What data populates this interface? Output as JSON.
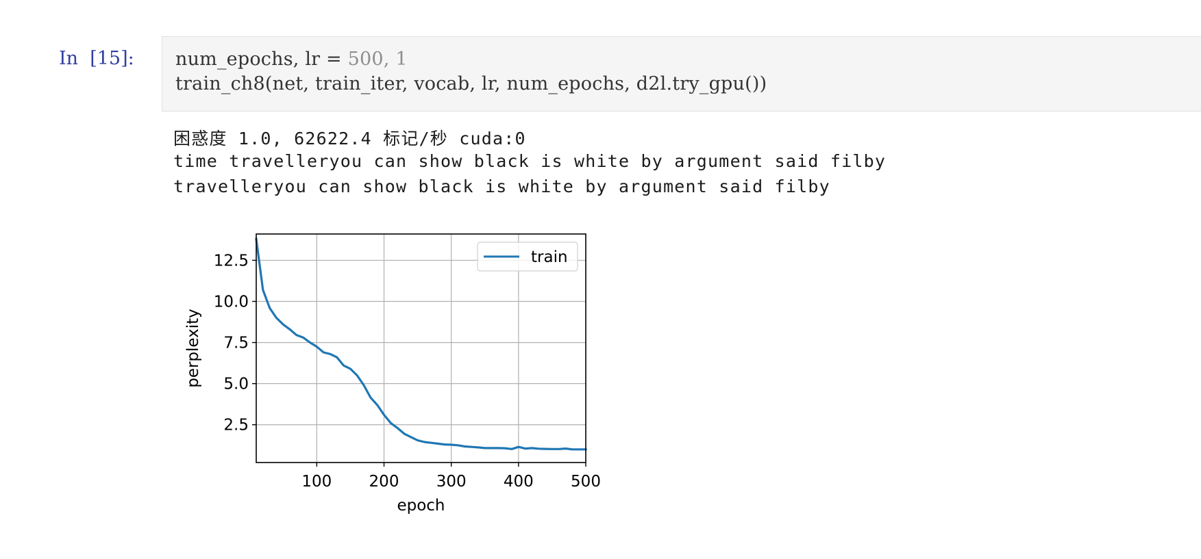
{
  "cell": {
    "prompt": "In  [15]:",
    "code_lines": [
      {
        "pre": "num_epochs, lr = ",
        "num": "500, 1"
      },
      {
        "pre": "train_ch8(net, train_iter, vocab, lr, num_epochs, d2l.try_gpu())",
        "num": ""
      }
    ]
  },
  "output": {
    "lines": [
      "困惑度 1.0, 62622.4 标记/秒 cuda:0",
      "time travelleryou can show black is white by argument said filby",
      "travelleryou can show black is white by argument said filby"
    ]
  },
  "colors": {
    "prompt": "#303f9f",
    "series": "#1f77b4",
    "grid": "#b0b0b0"
  },
  "chart_data": {
    "type": "line",
    "xlabel": "epoch",
    "ylabel": "perplexity",
    "xlim": [
      10,
      500
    ],
    "ylim": [
      0.2,
      14.1
    ],
    "xticks": [
      100,
      200,
      300,
      400,
      500
    ],
    "yticks": [
      2.5,
      5.0,
      7.5,
      10.0,
      12.5
    ],
    "xtick_labels": [
      "100",
      "200",
      "300",
      "400",
      "500"
    ],
    "ytick_labels": [
      "2.5",
      "5.0",
      "7.5",
      "10.0",
      "12.5"
    ],
    "grid": true,
    "legend_position": "top-right",
    "series": [
      {
        "name": "train",
        "x": [
          10,
          20,
          30,
          40,
          50,
          60,
          70,
          80,
          90,
          100,
          110,
          120,
          130,
          140,
          150,
          160,
          170,
          180,
          190,
          200,
          210,
          220,
          230,
          240,
          250,
          260,
          270,
          280,
          290,
          300,
          310,
          320,
          330,
          340,
          350,
          360,
          370,
          380,
          390,
          400,
          410,
          420,
          430,
          440,
          450,
          460,
          470,
          480,
          490,
          500
        ],
        "values": [
          13.8,
          10.7,
          9.6,
          9.0,
          8.6,
          8.3,
          7.95,
          7.8,
          7.5,
          7.25,
          6.9,
          6.8,
          6.6,
          6.1,
          5.9,
          5.5,
          4.9,
          4.15,
          3.7,
          3.1,
          2.6,
          2.3,
          1.95,
          1.75,
          1.55,
          1.45,
          1.4,
          1.35,
          1.3,
          1.28,
          1.25,
          1.18,
          1.15,
          1.12,
          1.08,
          1.08,
          1.08,
          1.07,
          1.02,
          1.15,
          1.05,
          1.08,
          1.04,
          1.03,
          1.02,
          1.02,
          1.05,
          1.0,
          1.0,
          1.0
        ]
      }
    ]
  }
}
